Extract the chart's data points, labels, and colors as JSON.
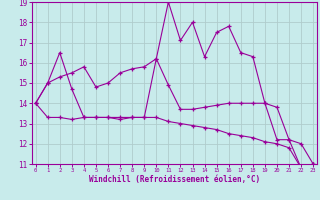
{
  "xlabel": "Windchill (Refroidissement éolien,°C)",
  "x": [
    0,
    1,
    2,
    3,
    4,
    5,
    6,
    7,
    8,
    9,
    10,
    11,
    12,
    13,
    14,
    15,
    16,
    17,
    18,
    19,
    20,
    21,
    22,
    23
  ],
  "line1": [
    14.0,
    15.0,
    16.5,
    14.7,
    13.3,
    13.3,
    13.3,
    13.3,
    13.3,
    13.3,
    16.2,
    19.0,
    17.1,
    18.0,
    16.3,
    17.5,
    17.8,
    16.5,
    16.3,
    14.0,
    12.2,
    12.2,
    10.8,
    11.0
  ],
  "line2": [
    14.0,
    15.0,
    15.3,
    15.5,
    15.8,
    14.8,
    15.0,
    15.5,
    15.7,
    15.8,
    16.2,
    14.9,
    13.7,
    13.7,
    13.8,
    13.9,
    14.0,
    14.0,
    14.0,
    14.0,
    13.8,
    12.2,
    12.0,
    11.0
  ],
  "line3": [
    14.0,
    13.3,
    13.3,
    13.2,
    13.3,
    13.3,
    13.3,
    13.2,
    13.3,
    13.3,
    13.3,
    13.1,
    13.0,
    12.9,
    12.8,
    12.7,
    12.5,
    12.4,
    12.3,
    12.1,
    12.0,
    11.8,
    10.8,
    11.0
  ],
  "line_color": "#990099",
  "bg_color": "#c8ebeb",
  "grid_color": "#b0cccc",
  "ylim": [
    11,
    19
  ],
  "xlim": [
    -0.3,
    23.3
  ],
  "yticks": [
    11,
    12,
    13,
    14,
    15,
    16,
    17,
    18,
    19
  ],
  "xticks": [
    0,
    1,
    2,
    3,
    4,
    5,
    6,
    7,
    8,
    9,
    10,
    11,
    12,
    13,
    14,
    15,
    16,
    17,
    18,
    19,
    20,
    21,
    22,
    23
  ]
}
